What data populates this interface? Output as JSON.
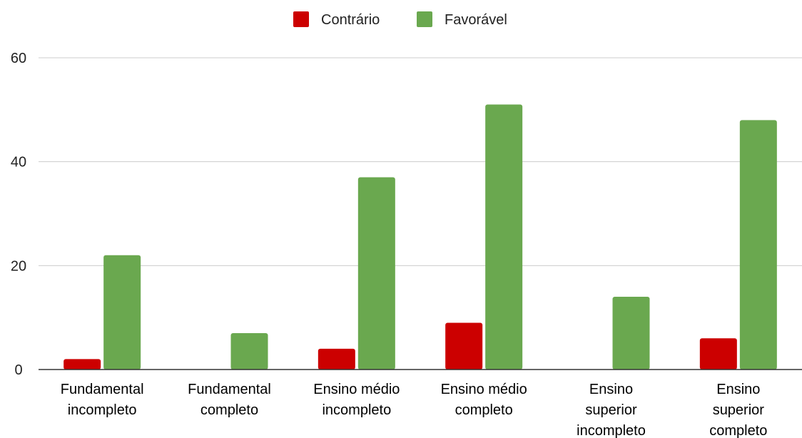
{
  "chart_data": {
    "type": "bar",
    "categories": [
      [
        "Fundamental",
        "incompleto"
      ],
      [
        "Fundamental",
        "completo"
      ],
      [
        "Ensino médio",
        "incompleto"
      ],
      [
        "Ensino médio",
        "completo"
      ],
      [
        "Ensino",
        "superior",
        "incompleto"
      ],
      [
        "Ensino",
        "superior",
        "completo"
      ]
    ],
    "series": [
      {
        "name": "Contrário",
        "color": "#cc0000",
        "values": [
          2,
          0,
          4,
          9,
          0,
          6
        ]
      },
      {
        "name": "Favorável",
        "color": "#6aa84f",
        "values": [
          22,
          7,
          37,
          51,
          14,
          48
        ]
      }
    ],
    "ylim": [
      0,
      60
    ],
    "yticks": [
      "0",
      "20",
      "40",
      "60"
    ],
    "grid": true,
    "legend_position": "top-center",
    "title": "",
    "xlabel": "",
    "ylabel": ""
  }
}
